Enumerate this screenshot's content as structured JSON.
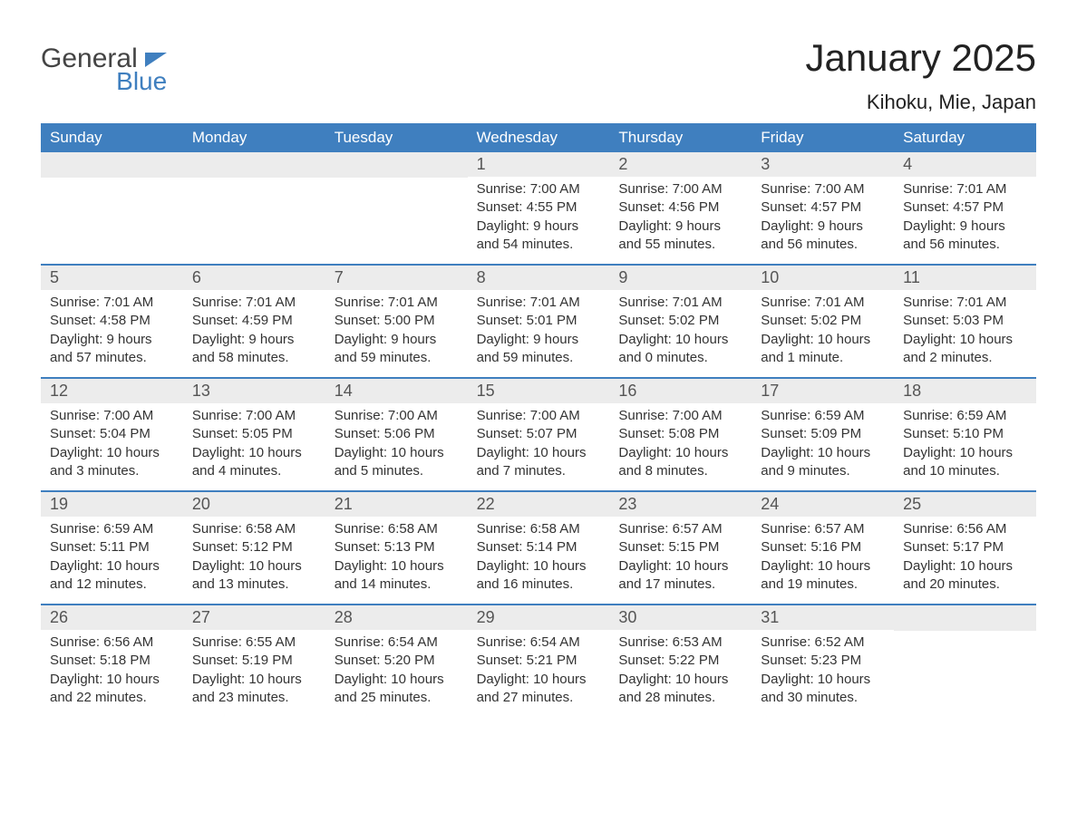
{
  "logo": {
    "line1": "General",
    "line2": "Blue"
  },
  "title": "January 2025",
  "location": "Kihoku, Mie, Japan",
  "colors": {
    "header_bg": "#3f7fbf",
    "header_text": "#ffffff",
    "daynum_bg": "#ececec",
    "week_divider": "#3f7fbf",
    "body_text": "#333333",
    "logo_blue": "#3f7fbf"
  },
  "fonts": {
    "title_size_pt": 32,
    "location_size_pt": 18,
    "head_size_pt": 13,
    "daynum_size_pt": 14,
    "body_size_pt": 11
  },
  "day_headers": [
    "Sunday",
    "Monday",
    "Tuesday",
    "Wednesday",
    "Thursday",
    "Friday",
    "Saturday"
  ],
  "weeks": [
    [
      null,
      null,
      null,
      {
        "n": "1",
        "sunrise": "7:00 AM",
        "sunset": "4:55 PM",
        "daylight": "9 hours and 54 minutes."
      },
      {
        "n": "2",
        "sunrise": "7:00 AM",
        "sunset": "4:56 PM",
        "daylight": "9 hours and 55 minutes."
      },
      {
        "n": "3",
        "sunrise": "7:00 AM",
        "sunset": "4:57 PM",
        "daylight": "9 hours and 56 minutes."
      },
      {
        "n": "4",
        "sunrise": "7:01 AM",
        "sunset": "4:57 PM",
        "daylight": "9 hours and 56 minutes."
      }
    ],
    [
      {
        "n": "5",
        "sunrise": "7:01 AM",
        "sunset": "4:58 PM",
        "daylight": "9 hours and 57 minutes."
      },
      {
        "n": "6",
        "sunrise": "7:01 AM",
        "sunset": "4:59 PM",
        "daylight": "9 hours and 58 minutes."
      },
      {
        "n": "7",
        "sunrise": "7:01 AM",
        "sunset": "5:00 PM",
        "daylight": "9 hours and 59 minutes."
      },
      {
        "n": "8",
        "sunrise": "7:01 AM",
        "sunset": "5:01 PM",
        "daylight": "9 hours and 59 minutes."
      },
      {
        "n": "9",
        "sunrise": "7:01 AM",
        "sunset": "5:02 PM",
        "daylight": "10 hours and 0 minutes."
      },
      {
        "n": "10",
        "sunrise": "7:01 AM",
        "sunset": "5:02 PM",
        "daylight": "10 hours and 1 minute."
      },
      {
        "n": "11",
        "sunrise": "7:01 AM",
        "sunset": "5:03 PM",
        "daylight": "10 hours and 2 minutes."
      }
    ],
    [
      {
        "n": "12",
        "sunrise": "7:00 AM",
        "sunset": "5:04 PM",
        "daylight": "10 hours and 3 minutes."
      },
      {
        "n": "13",
        "sunrise": "7:00 AM",
        "sunset": "5:05 PM",
        "daylight": "10 hours and 4 minutes."
      },
      {
        "n": "14",
        "sunrise": "7:00 AM",
        "sunset": "5:06 PM",
        "daylight": "10 hours and 5 minutes."
      },
      {
        "n": "15",
        "sunrise": "7:00 AM",
        "sunset": "5:07 PM",
        "daylight": "10 hours and 7 minutes."
      },
      {
        "n": "16",
        "sunrise": "7:00 AM",
        "sunset": "5:08 PM",
        "daylight": "10 hours and 8 minutes."
      },
      {
        "n": "17",
        "sunrise": "6:59 AM",
        "sunset": "5:09 PM",
        "daylight": "10 hours and 9 minutes."
      },
      {
        "n": "18",
        "sunrise": "6:59 AM",
        "sunset": "5:10 PM",
        "daylight": "10 hours and 10 minutes."
      }
    ],
    [
      {
        "n": "19",
        "sunrise": "6:59 AM",
        "sunset": "5:11 PM",
        "daylight": "10 hours and 12 minutes."
      },
      {
        "n": "20",
        "sunrise": "6:58 AM",
        "sunset": "5:12 PM",
        "daylight": "10 hours and 13 minutes."
      },
      {
        "n": "21",
        "sunrise": "6:58 AM",
        "sunset": "5:13 PM",
        "daylight": "10 hours and 14 minutes."
      },
      {
        "n": "22",
        "sunrise": "6:58 AM",
        "sunset": "5:14 PM",
        "daylight": "10 hours and 16 minutes."
      },
      {
        "n": "23",
        "sunrise": "6:57 AM",
        "sunset": "5:15 PM",
        "daylight": "10 hours and 17 minutes."
      },
      {
        "n": "24",
        "sunrise": "6:57 AM",
        "sunset": "5:16 PM",
        "daylight": "10 hours and 19 minutes."
      },
      {
        "n": "25",
        "sunrise": "6:56 AM",
        "sunset": "5:17 PM",
        "daylight": "10 hours and 20 minutes."
      }
    ],
    [
      {
        "n": "26",
        "sunrise": "6:56 AM",
        "sunset": "5:18 PM",
        "daylight": "10 hours and 22 minutes."
      },
      {
        "n": "27",
        "sunrise": "6:55 AM",
        "sunset": "5:19 PM",
        "daylight": "10 hours and 23 minutes."
      },
      {
        "n": "28",
        "sunrise": "6:54 AM",
        "sunset": "5:20 PM",
        "daylight": "10 hours and 25 minutes."
      },
      {
        "n": "29",
        "sunrise": "6:54 AM",
        "sunset": "5:21 PM",
        "daylight": "10 hours and 27 minutes."
      },
      {
        "n": "30",
        "sunrise": "6:53 AM",
        "sunset": "5:22 PM",
        "daylight": "10 hours and 28 minutes."
      },
      {
        "n": "31",
        "sunrise": "6:52 AM",
        "sunset": "5:23 PM",
        "daylight": "10 hours and 30 minutes."
      },
      null
    ]
  ],
  "labels": {
    "sunrise": "Sunrise: ",
    "sunset": "Sunset: ",
    "daylight": "Daylight: "
  }
}
